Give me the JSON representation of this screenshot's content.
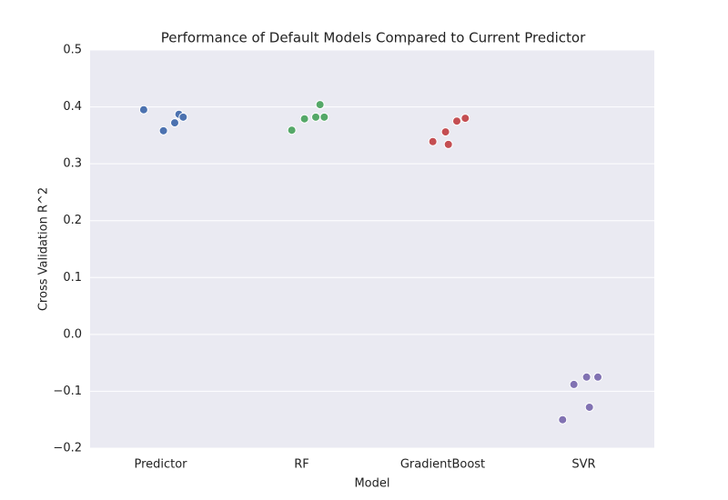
{
  "chart_data": {
    "type": "strip",
    "title": "Performance of Default Models Compared to Current Predictor",
    "x_label": "Model",
    "y_label": "Cross Validation R^2",
    "categories": [
      "Predictor",
      "RF",
      "GradientBoost",
      "SVR"
    ],
    "colors": [
      "#4c72b0",
      "#55a868",
      "#c44e52",
      "#8172b2"
    ],
    "values": [
      [
        0.395,
        0.387,
        0.382,
        0.372,
        0.358
      ],
      [
        0.404,
        0.382,
        0.382,
        0.379,
        0.359
      ],
      [
        0.38,
        0.375,
        0.356,
        0.339,
        0.334
      ],
      [
        -0.075,
        -0.075,
        -0.088,
        -0.128,
        -0.15
      ]
    ],
    "ylim": [
      -0.2,
      0.5
    ],
    "yticks": [
      {
        "value": -0.2,
        "label": "−0.2"
      },
      {
        "value": -0.1,
        "label": "−0.1"
      },
      {
        "value": 0,
        "label": "0.0"
      },
      0.1,
      0.2,
      0.3,
      0.4,
      0.5
    ],
    "grid": true,
    "background": "#eaeaf2"
  }
}
